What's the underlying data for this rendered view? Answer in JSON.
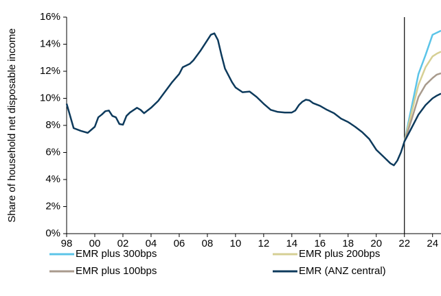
{
  "chart_data": {
    "type": "line",
    "y_label": "Share of household net disposable income",
    "x": [
      1998,
      1998.5,
      1999,
      1999.5,
      2000,
      2000.25,
      2000.5,
      2000.75,
      2001,
      2001.25,
      2001.5,
      2001.75,
      2002,
      2002.25,
      2002.5,
      2003,
      2003.25,
      2003.5,
      2004,
      2004.5,
      2005,
      2005.5,
      2006,
      2006.25,
      2006.75,
      2007,
      2007.5,
      2008,
      2008.25,
      2008.5,
      2008.75,
      2009,
      2009.25,
      2009.75,
      2010,
      2010.5,
      2011,
      2011.5,
      2012,
      2012.5,
      2013,
      2013.5,
      2014,
      2014.25,
      2014.5,
      2014.75,
      2015,
      2015.25,
      2015.5,
      2016,
      2016.5,
      2017,
      2017.5,
      2018,
      2018.5,
      2019,
      2019.5,
      2020,
      2020.5,
      2021,
      2021.25,
      2021.5,
      2021.75,
      2022,
      2022.5,
      2023,
      2023.5,
      2024,
      2024.3,
      2024.6
    ],
    "series": [
      {
        "name": "EMR plus 300bps",
        "color": "#5bc4e8",
        "values": [
          null,
          null,
          null,
          null,
          null,
          null,
          null,
          null,
          null,
          null,
          null,
          null,
          null,
          null,
          null,
          null,
          null,
          null,
          null,
          null,
          null,
          null,
          null,
          null,
          null,
          null,
          null,
          null,
          null,
          null,
          null,
          null,
          null,
          null,
          null,
          null,
          null,
          null,
          null,
          null,
          null,
          null,
          null,
          null,
          null,
          null,
          null,
          null,
          null,
          null,
          null,
          null,
          null,
          null,
          null,
          null,
          null,
          null,
          null,
          null,
          null,
          null,
          null,
          6.8,
          9.3,
          11.8,
          13.2,
          14.7,
          14.85,
          15.0
        ]
      },
      {
        "name": "EMR plus 200bps",
        "color": "#d6cf94",
        "values": [
          null,
          null,
          null,
          null,
          null,
          null,
          null,
          null,
          null,
          null,
          null,
          null,
          null,
          null,
          null,
          null,
          null,
          null,
          null,
          null,
          null,
          null,
          null,
          null,
          null,
          null,
          null,
          null,
          null,
          null,
          null,
          null,
          null,
          null,
          null,
          null,
          null,
          null,
          null,
          null,
          null,
          null,
          null,
          null,
          null,
          null,
          null,
          null,
          null,
          null,
          null,
          null,
          null,
          null,
          null,
          null,
          null,
          null,
          null,
          null,
          null,
          null,
          null,
          6.8,
          8.9,
          11.0,
          12.3,
          13.1,
          13.3,
          13.45
        ]
      },
      {
        "name": "EMR plus 100bps",
        "color": "#a89a8c",
        "values": [
          null,
          null,
          null,
          null,
          null,
          null,
          null,
          null,
          null,
          null,
          null,
          null,
          null,
          null,
          null,
          null,
          null,
          null,
          null,
          null,
          null,
          null,
          null,
          null,
          null,
          null,
          null,
          null,
          null,
          null,
          null,
          null,
          null,
          null,
          null,
          null,
          null,
          null,
          null,
          null,
          null,
          null,
          null,
          null,
          null,
          null,
          null,
          null,
          null,
          null,
          null,
          null,
          null,
          null,
          null,
          null,
          null,
          null,
          null,
          null,
          null,
          null,
          null,
          6.8,
          8.4,
          10.1,
          11.0,
          11.5,
          11.75,
          11.85
        ]
      },
      {
        "name": "EMR (ANZ central)",
        "color": "#0d3a5c",
        "values": [
          9.6,
          7.8,
          7.6,
          7.45,
          7.9,
          8.6,
          8.8,
          9.05,
          9.1,
          8.7,
          8.6,
          8.1,
          8.05,
          8.7,
          8.95,
          9.3,
          9.15,
          8.9,
          9.3,
          9.8,
          10.5,
          11.2,
          11.8,
          12.3,
          12.55,
          12.8,
          13.5,
          14.3,
          14.7,
          14.8,
          14.3,
          13.2,
          12.2,
          11.2,
          10.8,
          10.45,
          10.5,
          10.1,
          9.6,
          9.15,
          9.0,
          8.95,
          8.95,
          9.1,
          9.5,
          9.75,
          9.9,
          9.85,
          9.65,
          9.45,
          9.15,
          8.9,
          8.5,
          8.25,
          7.9,
          7.5,
          7.0,
          6.2,
          5.7,
          5.2,
          5.05,
          5.4,
          6.0,
          6.8,
          7.8,
          8.8,
          9.5,
          10.0,
          10.2,
          10.35
        ]
      }
    ],
    "vline": 2022,
    "xlim": [
      1998,
      2024.6
    ],
    "xticks": [
      {
        "value": 1998,
        "label": "98"
      },
      {
        "value": 2000,
        "label": "00"
      },
      {
        "value": 2002,
        "label": "02"
      },
      {
        "value": 2004,
        "label": "04"
      },
      {
        "value": 2006,
        "label": "06"
      },
      {
        "value": 2008,
        "label": "08"
      },
      {
        "value": 2010,
        "label": "10"
      },
      {
        "value": 2012,
        "label": "12"
      },
      {
        "value": 2014,
        "label": "14"
      },
      {
        "value": 2016,
        "label": "16"
      },
      {
        "value": 2018,
        "label": "18"
      },
      {
        "value": 2020,
        "label": "20"
      },
      {
        "value": 2022,
        "label": "22"
      },
      {
        "value": 2024,
        "label": "24"
      }
    ],
    "ylim": [
      0,
      16
    ],
    "yticks": [
      {
        "value": 0,
        "label": "0%"
      },
      {
        "value": 2,
        "label": "2%"
      },
      {
        "value": 4,
        "label": "4%"
      },
      {
        "value": 6,
        "label": "6%"
      },
      {
        "value": 8,
        "label": "8%"
      },
      {
        "value": 10,
        "label": "10%"
      },
      {
        "value": 12,
        "label": "12%"
      },
      {
        "value": 14,
        "label": "14%"
      },
      {
        "value": 16,
        "label": "16%"
      }
    ],
    "grid": false
  }
}
